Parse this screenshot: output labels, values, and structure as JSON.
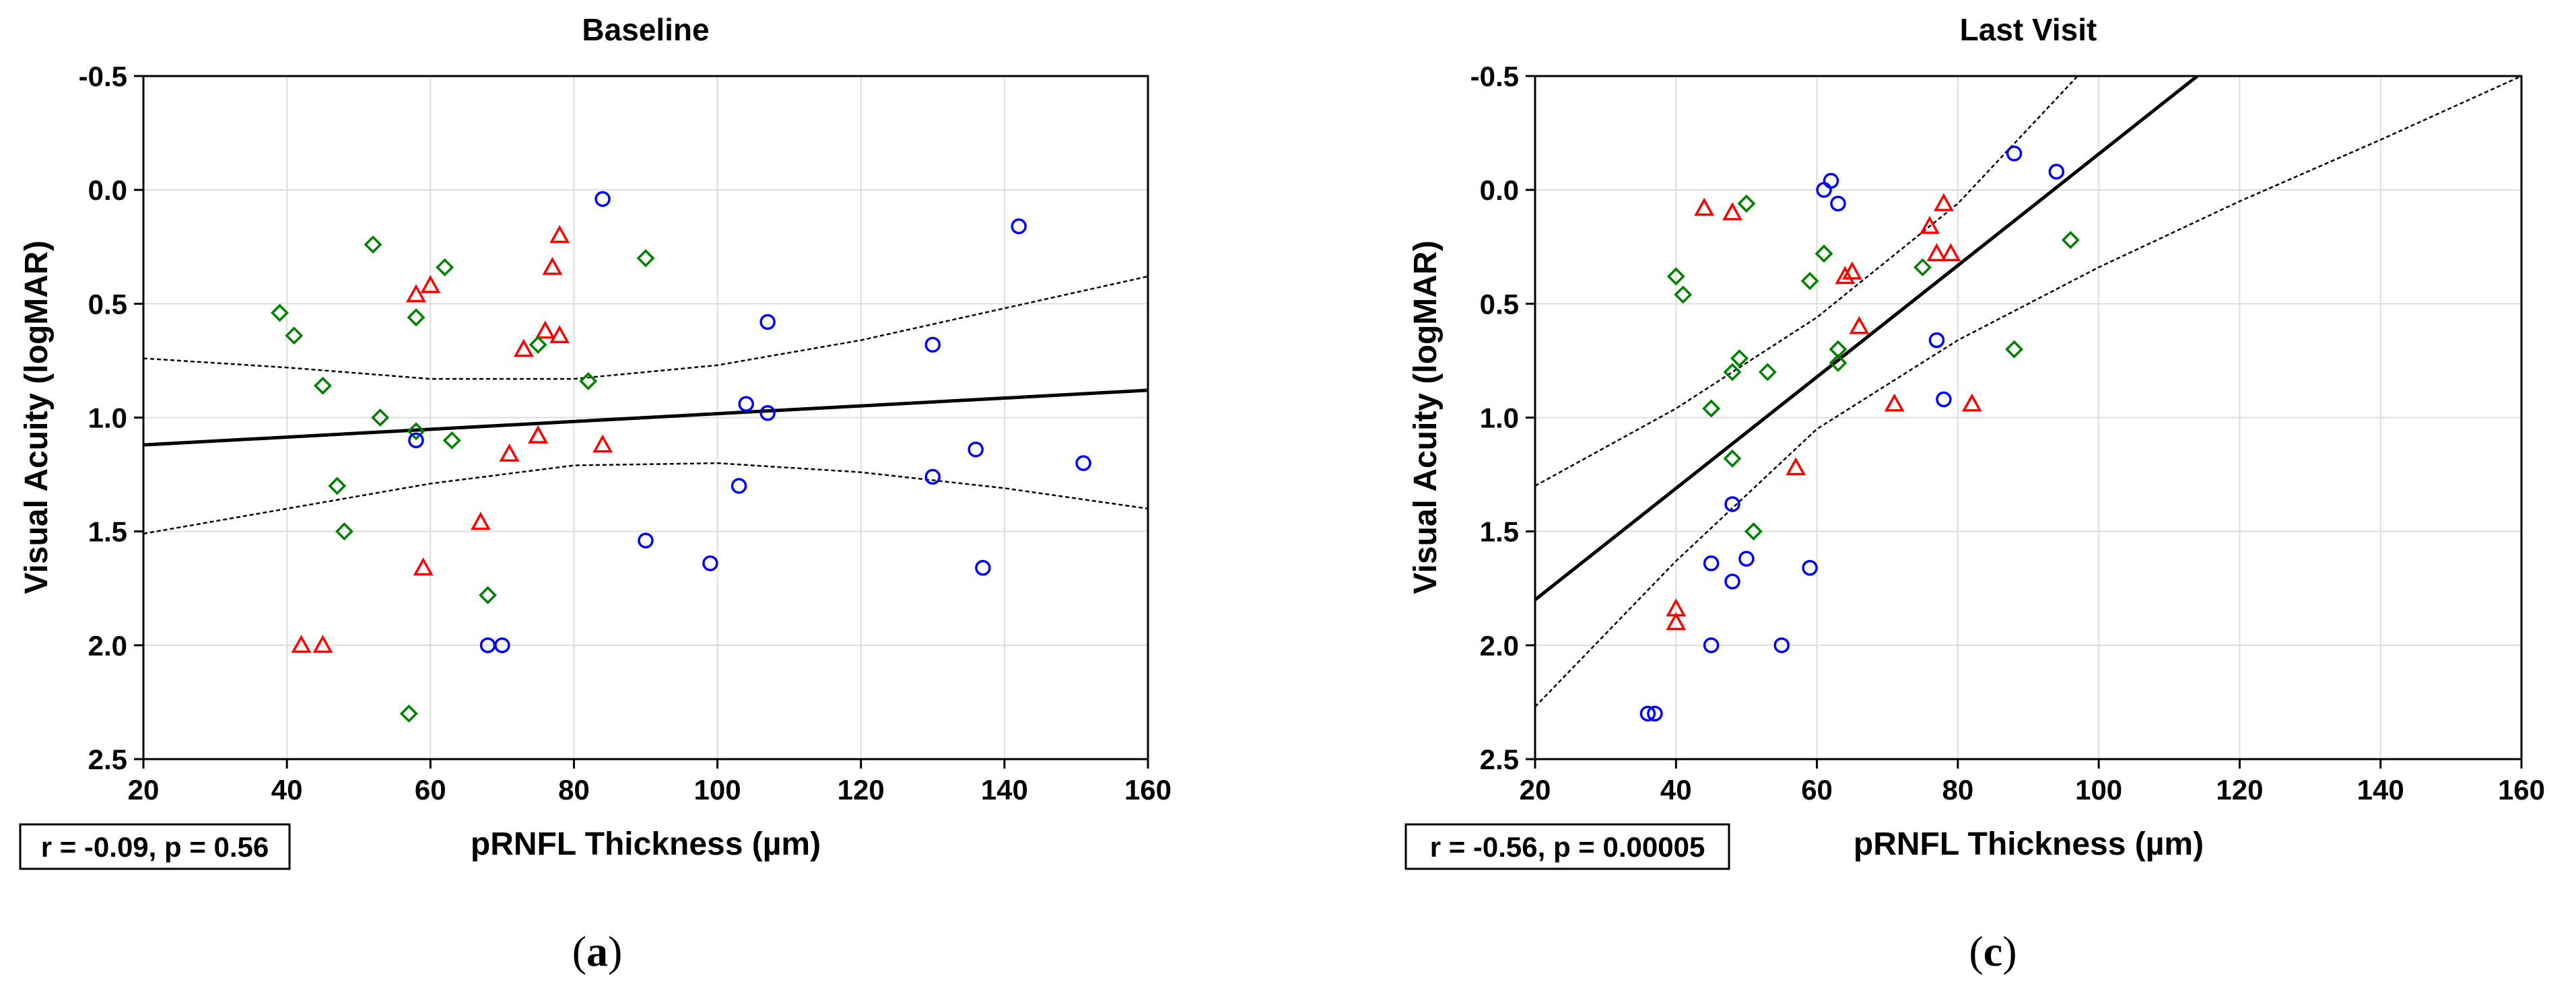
{
  "figure_labels": [
    "(a)",
    "(c)"
  ],
  "chart_data": [
    {
      "type": "scatter",
      "title": "Baseline",
      "xlabel": "pRNFL Thickness (µm)",
      "ylabel": "Visual Acuity (logMAR)",
      "xlim": [
        20,
        160
      ],
      "ylim": [
        2.5,
        -0.5
      ],
      "xticks": [
        "20",
        "40",
        "60",
        "80",
        "100",
        "120",
        "140",
        "160"
      ],
      "yticks": [
        "-0.5",
        "0.0",
        "0.5",
        "1.0",
        "1.5",
        "2.0",
        "2.5"
      ],
      "grid": true,
      "stat_label": "r = -0.09, p = 0.56",
      "panel_label": "(a)",
      "fit_line": [
        [
          20,
          1.12
        ],
        [
          160,
          0.88
        ]
      ],
      "ci_upper": [
        [
          20,
          0.74
        ],
        [
          40,
          0.78
        ],
        [
          60,
          0.83
        ],
        [
          80,
          0.83
        ],
        [
          100,
          0.77
        ],
        [
          120,
          0.66
        ],
        [
          140,
          0.52
        ],
        [
          160,
          0.38
        ]
      ],
      "ci_lower": [
        [
          20,
          1.51
        ],
        [
          40,
          1.4
        ],
        [
          60,
          1.29
        ],
        [
          80,
          1.21
        ],
        [
          100,
          1.2
        ],
        [
          120,
          1.24
        ],
        [
          140,
          1.31
        ],
        [
          160,
          1.4
        ]
      ],
      "series": [
        {
          "name": "triangle",
          "marker": "triangle",
          "color": "#ff0000",
          "x": [
            58,
            60,
            73,
            76,
            77,
            78,
            78,
            75,
            71,
            67,
            75,
            84,
            59,
            42,
            45
          ],
          "y": [
            0.46,
            0.42,
            0.7,
            0.62,
            0.34,
            0.64,
            0.2,
            1.08,
            1.16,
            1.46,
            1.08,
            1.12,
            1.66,
            2.0,
            2.0
          ]
        },
        {
          "name": "diamond",
          "marker": "diamond",
          "color": "#008000",
          "x": [
            39,
            41,
            45,
            52,
            58,
            62,
            53,
            58,
            63,
            47,
            48,
            75,
            82,
            90,
            68,
            57
          ],
          "y": [
            0.54,
            0.64,
            0.86,
            0.24,
            0.56,
            0.34,
            1.0,
            1.06,
            1.1,
            1.3,
            1.5,
            0.68,
            0.84,
            0.3,
            1.78,
            2.3
          ]
        },
        {
          "name": "circle",
          "marker": "circle",
          "color": "#0000ff",
          "x": [
            84,
            107,
            104,
            107,
            130,
            142,
            136,
            151,
            130,
            103,
            90,
            99,
            137,
            68,
            70,
            58
          ],
          "y": [
            0.04,
            0.58,
            0.94,
            0.98,
            0.68,
            0.16,
            1.14,
            1.2,
            1.26,
            1.3,
            1.54,
            1.64,
            1.66,
            2.0,
            2.0,
            1.1
          ]
        }
      ]
    },
    {
      "type": "scatter",
      "title": "Last Visit",
      "xlabel": "pRNFL Thickness (µm)",
      "ylabel": "Visual Acuity (logMAR)",
      "xlim": [
        20,
        160
      ],
      "ylim": [
        2.5,
        -0.5
      ],
      "xticks": [
        "20",
        "40",
        "60",
        "80",
        "100",
        "120",
        "140",
        "160"
      ],
      "yticks": [
        "-0.5",
        "0.0",
        "0.5",
        "1.0",
        "1.5",
        "2.0",
        "2.5"
      ],
      "grid": true,
      "stat_label": "r = -0.56, p = 0.00005",
      "panel_label": "(c)",
      "fit_line": [
        [
          20,
          1.8
        ],
        [
          114,
          -0.5
        ]
      ],
      "ci_upper": [
        [
          20,
          1.3
        ],
        [
          40,
          0.96
        ],
        [
          60,
          0.56
        ],
        [
          80,
          0.06
        ],
        [
          97,
          -0.5
        ]
      ],
      "ci_lower": [
        [
          20,
          2.27
        ],
        [
          40,
          1.63
        ],
        [
          60,
          1.05
        ],
        [
          80,
          0.66
        ],
        [
          100,
          0.34
        ],
        [
          120,
          0.05
        ],
        [
          140,
          -0.22
        ],
        [
          160,
          -0.5
        ]
      ],
      "series": [
        {
          "name": "triangle",
          "marker": "triangle",
          "color": "#ff0000",
          "x": [
            44,
            48,
            76,
            78,
            77,
            79,
            65,
            64,
            66,
            71,
            82,
            57,
            40,
            40
          ],
          "y": [
            0.08,
            0.1,
            0.16,
            0.06,
            0.28,
            0.28,
            0.36,
            0.38,
            0.6,
            0.94,
            0.94,
            1.22,
            1.84,
            1.9
          ]
        },
        {
          "name": "diamond",
          "marker": "diamond",
          "color": "#008000",
          "x": [
            50,
            61,
            59,
            40,
            41,
            75,
            96,
            48,
            49,
            53,
            63,
            63,
            45,
            48,
            51,
            88
          ],
          "y": [
            0.06,
            0.28,
            0.4,
            0.38,
            0.46,
            0.34,
            0.22,
            0.8,
            0.74,
            0.8,
            0.7,
            0.76,
            0.96,
            1.18,
            1.5,
            0.7
          ]
        },
        {
          "name": "circle",
          "marker": "circle",
          "color": "#0000ff",
          "x": [
            62,
            61,
            63,
            88,
            94,
            77,
            78,
            48,
            45,
            50,
            48,
            59,
            45,
            55,
            36,
            37
          ],
          "y": [
            -0.04,
            0.0,
            0.06,
            -0.16,
            -0.08,
            0.66,
            0.92,
            1.38,
            1.64,
            1.62,
            1.72,
            1.66,
            2.0,
            2.0,
            2.3,
            2.3
          ]
        }
      ]
    }
  ]
}
